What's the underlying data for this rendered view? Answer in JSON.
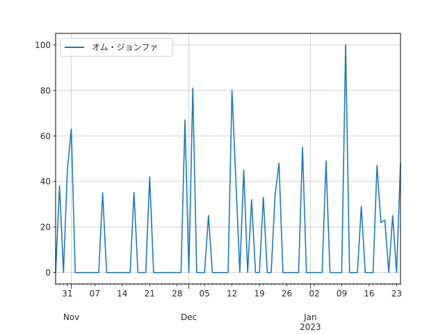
{
  "chart_data": {
    "type": "line",
    "title": "",
    "xlabel": "",
    "ylabel": "",
    "ylim": [
      -5,
      105
    ],
    "xlim": [
      "2022-10-28",
      "2023-01-24"
    ],
    "grid": true,
    "legend_placement": "upper-left",
    "y_ticks": [
      "0",
      "20",
      "40",
      "60",
      "80",
      "100"
    ],
    "x_minor_tick_labels": [
      {
        "date": "2022-10-31",
        "label": "31"
      },
      {
        "date": "2022-11-07",
        "label": "07"
      },
      {
        "date": "2022-11-14",
        "label": "14"
      },
      {
        "date": "2022-11-21",
        "label": "21"
      },
      {
        "date": "2022-11-28",
        "label": "28"
      },
      {
        "date": "2022-12-05",
        "label": "05"
      },
      {
        "date": "2022-12-12",
        "label": "12"
      },
      {
        "date": "2022-12-19",
        "label": "19"
      },
      {
        "date": "2022-12-26",
        "label": "26"
      },
      {
        "date": "2023-01-02",
        "label": "02"
      },
      {
        "date": "2023-01-09",
        "label": "09"
      },
      {
        "date": "2023-01-16",
        "label": "16"
      },
      {
        "date": "2023-01-23",
        "label": "23"
      }
    ],
    "x_major_tick_labels": [
      {
        "date": "2022-11-01",
        "label": "Nov",
        "sublabel": ""
      },
      {
        "date": "2022-12-01",
        "label": "Dec",
        "sublabel": ""
      },
      {
        "date": "2023-01-01",
        "label": "Jan",
        "sublabel": "2023"
      }
    ],
    "series": [
      {
        "name": "オム・ジョンファ",
        "color": "#1f77b4",
        "start_date": "2022-10-28",
        "frequency": "daily",
        "values": [
          0,
          38,
          0,
          45,
          63,
          0,
          0,
          0,
          0,
          0,
          0,
          0,
          35,
          0,
          0,
          0,
          0,
          0,
          0,
          0,
          35,
          0,
          0,
          0,
          42,
          0,
          0,
          0,
          0,
          0,
          0,
          0,
          0,
          67,
          0,
          81,
          0,
          0,
          0,
          25,
          0,
          0,
          0,
          0,
          0,
          80,
          40,
          0,
          45,
          0,
          32,
          0,
          0,
          33,
          0,
          0,
          34,
          48,
          0,
          0,
          0,
          0,
          0,
          55,
          0,
          0,
          0,
          0,
          0,
          49,
          0,
          0,
          0,
          0,
          100,
          0,
          0,
          0,
          29,
          0,
          0,
          0,
          47,
          22,
          23,
          0,
          25,
          0,
          48
        ]
      }
    ]
  }
}
